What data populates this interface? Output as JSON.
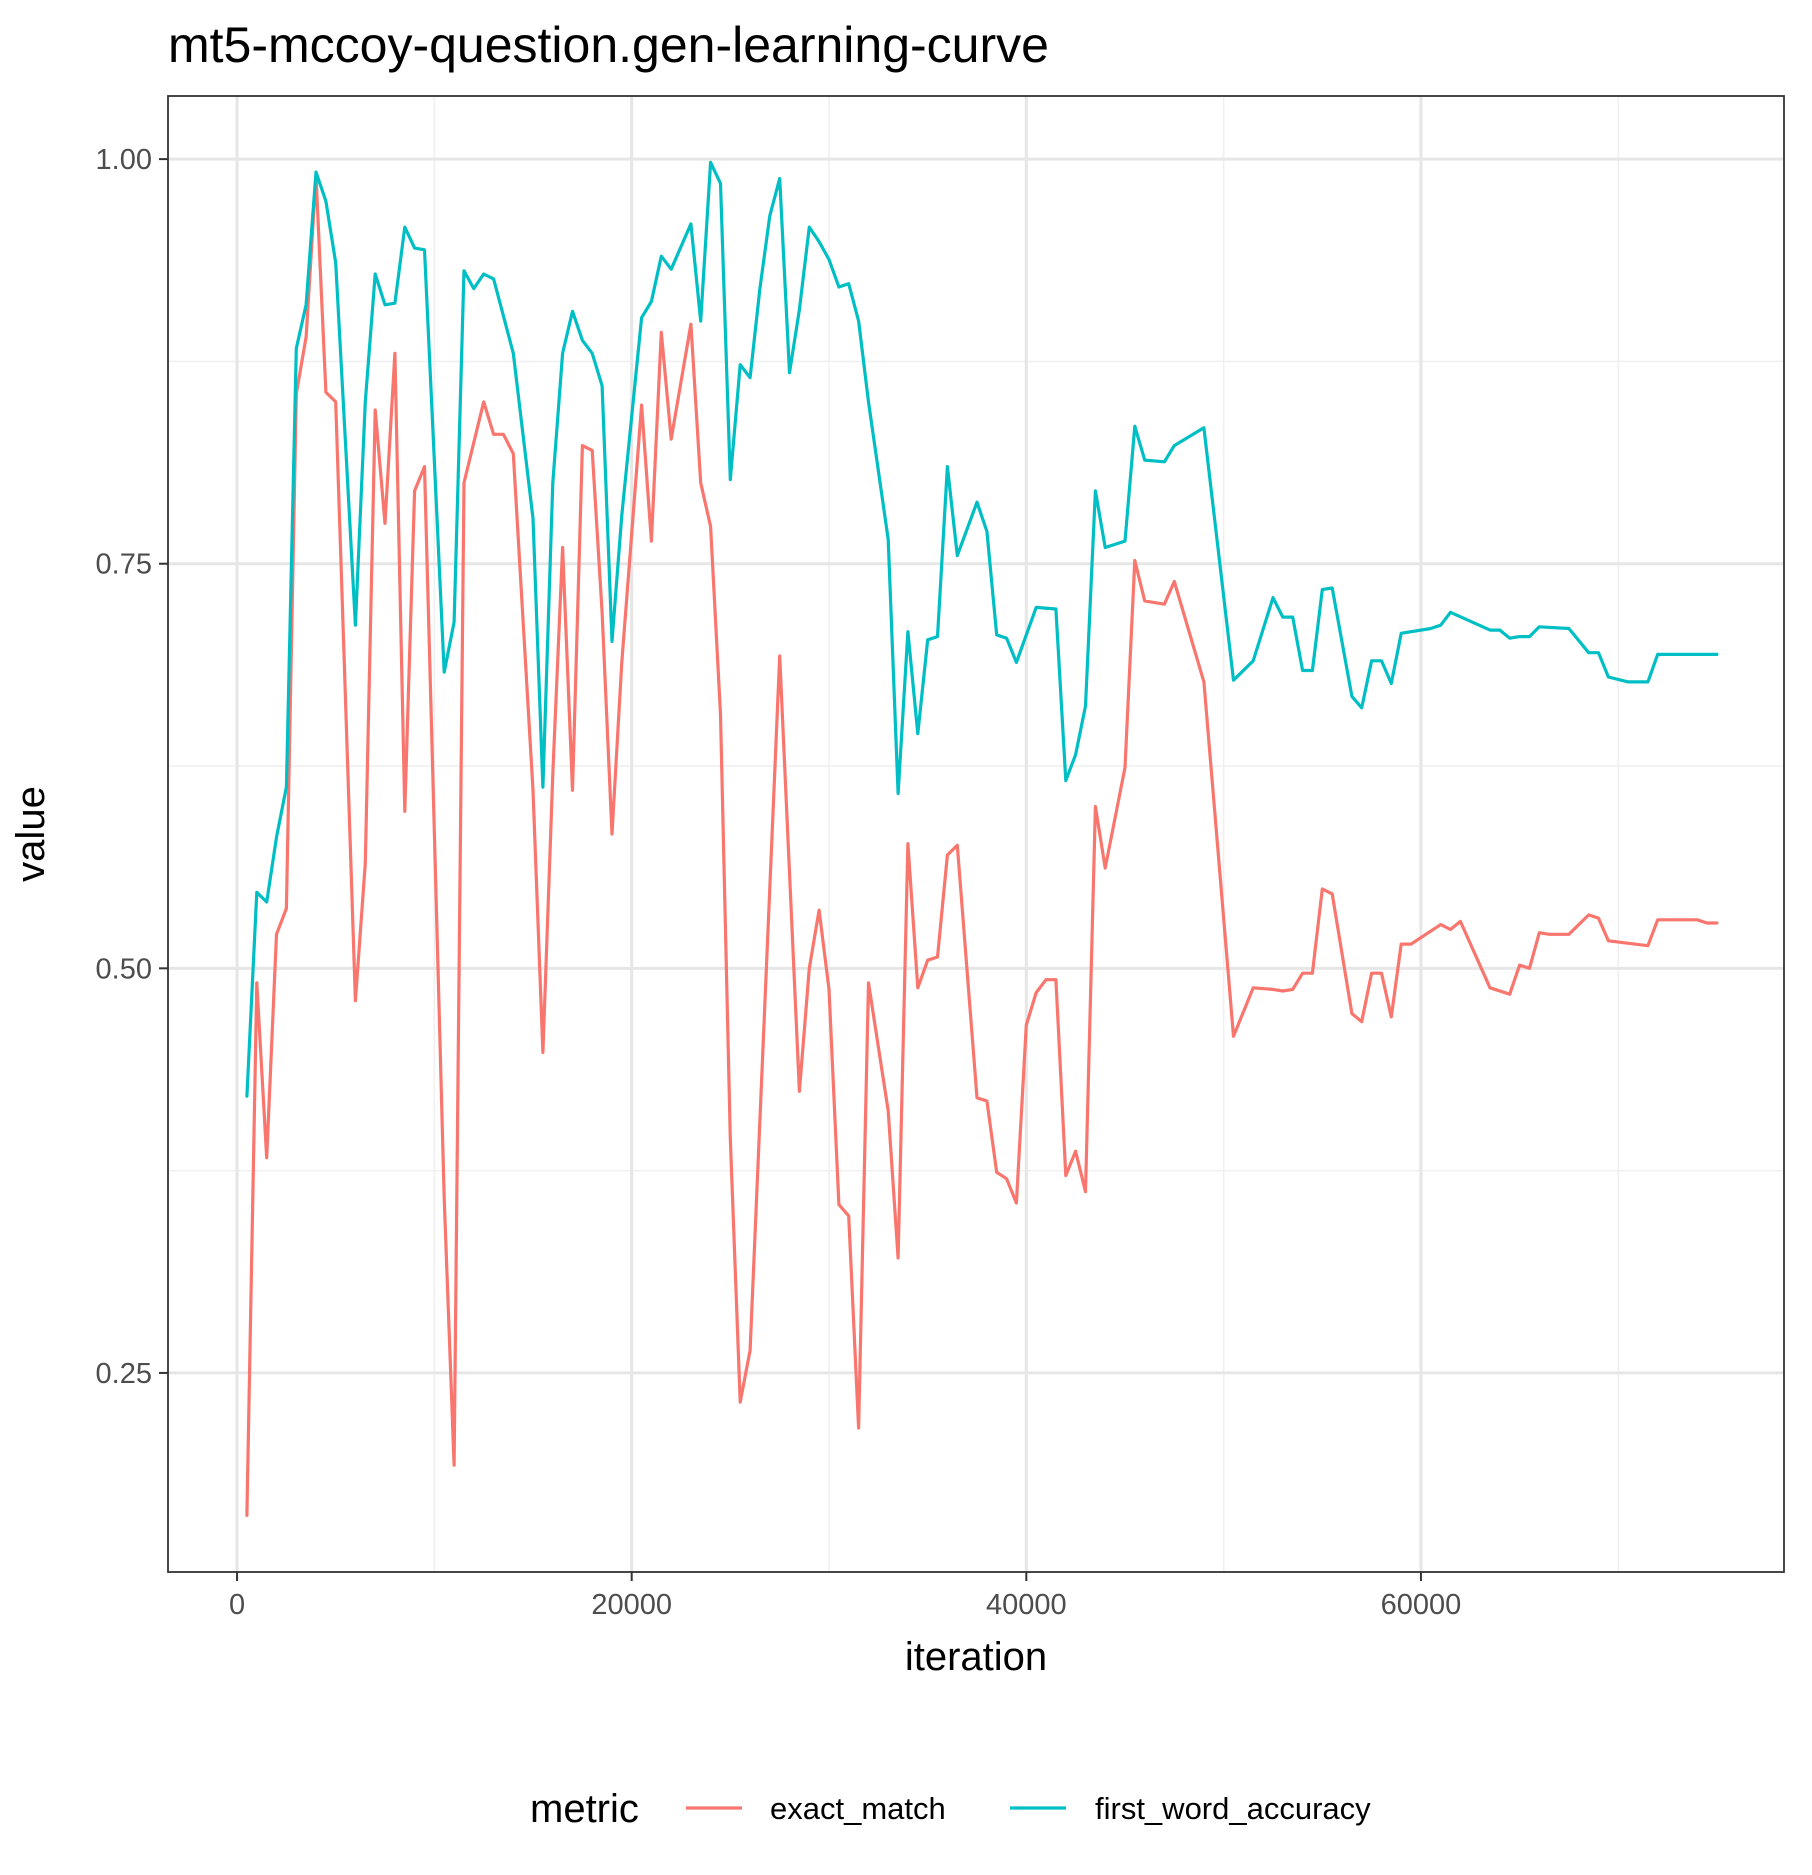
{
  "chart_data": {
    "type": "line",
    "title": "mt5-mccoy-question.gen-learning-curve",
    "xlabel": "iteration",
    "ylabel": "value",
    "xlim": [
      -3500,
      78400
    ],
    "ylim": [
      0.127,
      1.039
    ],
    "x_ticks": [
      0,
      20000,
      40000,
      60000
    ],
    "y_ticks": [
      0.25,
      0.5,
      0.75,
      1.0
    ],
    "x_tick_labels": [
      "0",
      "20000",
      "40000",
      "60000"
    ],
    "y_tick_labels": [
      "0.25",
      "0.50",
      "0.75",
      "1.00"
    ],
    "grid": true,
    "legend": {
      "title": "metric",
      "position": "bottom"
    },
    "series": [
      {
        "name": "exact_match",
        "color": "#F8766D",
        "x": [
          500,
          1000,
          1500,
          2000,
          2500,
          3000,
          3500,
          4000,
          4500,
          5000,
          6000,
          6500,
          7000,
          7500,
          8000,
          8500,
          9000,
          9500,
          10500,
          11000,
          11500,
          12500,
          13000,
          13500,
          14000,
          15000,
          15500,
          16000,
          16500,
          17000,
          17500,
          18000,
          18500,
          19000,
          19500,
          20500,
          21000,
          21500,
          22000,
          23000,
          23500,
          24000,
          24500,
          25000,
          25500,
          26000,
          27500,
          28500,
          29000,
          29500,
          30000,
          30500,
          31000,
          31500,
          32000,
          33000,
          33500,
          34000,
          34500,
          35000,
          35500,
          36000,
          36500,
          37500,
          38000,
          38500,
          39000,
          39500,
          40000,
          40500,
          41000,
          41500,
          42000,
          42500,
          43000,
          43500,
          44000,
          45000,
          45500,
          46000,
          47000,
          47500,
          49000,
          50500,
          51500,
          52500,
          53000,
          53500,
          54000,
          54500,
          55000,
          55500,
          56500,
          57000,
          57500,
          58000,
          58500,
          59000,
          59500,
          61000,
          61500,
          62000,
          63500,
          64500,
          65000,
          65500,
          66000,
          66500,
          67500,
          68500,
          69000,
          69500,
          71500,
          72000,
          73000,
          74000,
          74500,
          75000
        ],
        "values": [
          0.162,
          0.491,
          0.383,
          0.521,
          0.537,
          0.855,
          0.89,
          0.99,
          0.856,
          0.85,
          0.48,
          0.565,
          0.845,
          0.775,
          0.88,
          0.597,
          0.795,
          0.81,
          0.358,
          0.193,
          0.8,
          0.85,
          0.83,
          0.83,
          0.818,
          0.61,
          0.448,
          0.62,
          0.76,
          0.61,
          0.823,
          0.82,
          0.72,
          0.583,
          0.689,
          0.848,
          0.764,
          0.893,
          0.827,
          0.898,
          0.8,
          0.773,
          0.657,
          0.395,
          0.232,
          0.264,
          0.693,
          0.424,
          0.5,
          0.536,
          0.487,
          0.354,
          0.347,
          0.216,
          0.491,
          0.412,
          0.321,
          0.577,
          0.488,
          0.505,
          0.507,
          0.57,
          0.576,
          0.42,
          0.418,
          0.374,
          0.37,
          0.355,
          0.465,
          0.485,
          0.493,
          0.493,
          0.372,
          0.387,
          0.362,
          0.6,
          0.562,
          0.624,
          0.752,
          0.727,
          0.725,
          0.739,
          0.677,
          0.458,
          0.488,
          0.487,
          0.486,
          0.487,
          0.497,
          0.497,
          0.549,
          0.546,
          0.472,
          0.467,
          0.497,
          0.497,
          0.47,
          0.515,
          0.515,
          0.527,
          0.524,
          0.529,
          0.488,
          0.484,
          0.502,
          0.5,
          0.522,
          0.521,
          0.521,
          0.533,
          0.531,
          0.517,
          0.514,
          0.53,
          0.53,
          0.53,
          0.528,
          0.528
        ]
      },
      {
        "name": "first_word_accuracy",
        "color": "#00BFC4",
        "x": [
          500,
          1000,
          1500,
          2000,
          2500,
          3000,
          3500,
          4000,
          4500,
          5000,
          6000,
          6500,
          7000,
          7500,
          8000,
          8500,
          9000,
          9500,
          10500,
          11000,
          11500,
          12000,
          12500,
          13000,
          14000,
          15000,
          15500,
          16000,
          16500,
          17000,
          17500,
          18000,
          18500,
          19000,
          19500,
          20500,
          21000,
          21500,
          22000,
          23000,
          23500,
          24000,
          24500,
          25000,
          25500,
          26000,
          26500,
          27000,
          27500,
          28000,
          28500,
          29000,
          29500,
          30000,
          30500,
          31000,
          31500,
          32000,
          33000,
          33500,
          34000,
          34500,
          35000,
          35500,
          36000,
          36500,
          37500,
          38000,
          38500,
          39000,
          39500,
          40500,
          41500,
          42000,
          42500,
          43000,
          43500,
          44000,
          45000,
          45500,
          46000,
          47000,
          47500,
          49000,
          50500,
          51500,
          52500,
          53000,
          53500,
          54000,
          54500,
          55000,
          55500,
          56500,
          57000,
          57500,
          58000,
          58500,
          59000,
          60500,
          61000,
          61500,
          63500,
          64000,
          64500,
          65000,
          65500,
          66000,
          67500,
          68500,
          69000,
          69500,
          70500,
          71500,
          72000,
          73000,
          74500,
          75000
        ],
        "values": [
          0.421,
          0.547,
          0.541,
          0.581,
          0.612,
          0.883,
          0.91,
          0.992,
          0.974,
          0.936,
          0.712,
          0.85,
          0.929,
          0.91,
          0.911,
          0.958,
          0.945,
          0.944,
          0.683,
          0.714,
          0.931,
          0.92,
          0.929,
          0.926,
          0.88,
          0.778,
          0.612,
          0.8,
          0.88,
          0.906,
          0.888,
          0.88,
          0.86,
          0.702,
          0.78,
          0.902,
          0.912,
          0.94,
          0.932,
          0.96,
          0.9,
          0.998,
          0.985,
          0.802,
          0.873,
          0.865,
          0.92,
          0.965,
          0.988,
          0.868,
          0.907,
          0.958,
          0.949,
          0.938,
          0.921,
          0.923,
          0.9,
          0.85,
          0.765,
          0.608,
          0.708,
          0.645,
          0.703,
          0.705,
          0.81,
          0.755,
          0.788,
          0.77,
          0.706,
          0.704,
          0.689,
          0.723,
          0.722,
          0.616,
          0.632,
          0.662,
          0.795,
          0.76,
          0.764,
          0.835,
          0.814,
          0.813,
          0.823,
          0.834,
          0.678,
          0.69,
          0.729,
          0.717,
          0.717,
          0.684,
          0.684,
          0.734,
          0.735,
          0.668,
          0.661,
          0.69,
          0.69,
          0.676,
          0.707,
          0.71,
          0.712,
          0.72,
          0.709,
          0.709,
          0.704,
          0.705,
          0.705,
          0.711,
          0.71,
          0.695,
          0.695,
          0.68,
          0.677,
          0.677,
          0.694,
          0.694,
          0.694,
          0.694
        ]
      }
    ]
  }
}
